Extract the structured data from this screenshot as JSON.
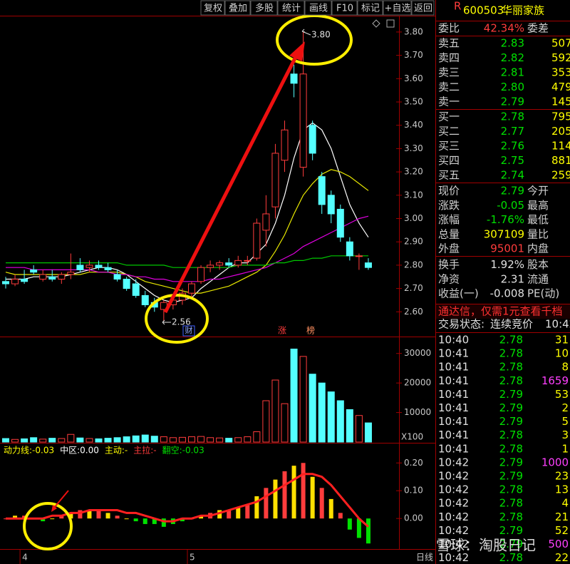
{
  "toolbar": [
    "复权",
    "叠加",
    "多股",
    "统计",
    "画线",
    "F10",
    "标记",
    "+自选",
    "返回"
  ],
  "chart_data": [
    {
      "type": "candlestick",
      "period": "日线",
      "categories": [
        null,
        null,
        "4",
        null,
        null,
        null,
        null,
        null,
        null,
        null,
        null,
        null,
        null,
        null,
        null,
        null,
        null,
        null,
        null,
        null,
        "5",
        null,
        null,
        null,
        null,
        null,
        null,
        null,
        null,
        null,
        null,
        null,
        null,
        null,
        null,
        null,
        null,
        null,
        null,
        null
      ],
      "open": [
        2.73,
        2.72,
        2.74,
        2.78,
        2.74,
        2.75,
        2.74,
        2.76,
        2.8,
        2.79,
        2.8,
        2.79,
        2.76,
        2.74,
        2.72,
        2.67,
        2.64,
        2.61,
        2.63,
        2.65,
        2.68,
        2.73,
        2.79,
        2.8,
        2.81,
        2.8,
        2.82,
        2.83,
        2.95,
        3.05,
        3.25,
        3.62,
        3.22,
        3.4,
        3.18,
        3.1,
        3.04,
        2.9,
        2.84,
        2.81
      ],
      "high": [
        2.75,
        2.76,
        2.78,
        2.8,
        2.78,
        2.78,
        2.77,
        2.85,
        2.83,
        2.82,
        2.82,
        2.81,
        2.78,
        2.75,
        2.74,
        2.69,
        2.66,
        2.65,
        2.66,
        2.7,
        2.73,
        2.8,
        2.82,
        2.82,
        2.83,
        2.84,
        2.84,
        3.0,
        3.1,
        3.32,
        3.42,
        3.66,
        3.8,
        3.42,
        3.2,
        3.12,
        3.06,
        2.92,
        2.85,
        2.83
      ],
      "low": [
        2.7,
        2.71,
        2.72,
        2.76,
        2.73,
        2.73,
        2.72,
        2.74,
        2.77,
        2.77,
        2.78,
        2.77,
        2.73,
        2.69,
        2.66,
        2.62,
        2.6,
        2.56,
        2.61,
        2.63,
        2.66,
        2.72,
        2.77,
        2.78,
        2.79,
        2.79,
        2.8,
        2.82,
        2.88,
        3.0,
        3.2,
        3.52,
        3.18,
        3.25,
        3.02,
        2.98,
        2.9,
        2.82,
        2.78,
        2.78
      ],
      "close": [
        2.72,
        2.74,
        2.73,
        2.77,
        2.76,
        2.74,
        2.76,
        2.77,
        2.78,
        2.8,
        2.79,
        2.78,
        2.74,
        2.7,
        2.67,
        2.63,
        2.62,
        2.64,
        2.65,
        2.68,
        2.72,
        2.79,
        2.8,
        2.81,
        2.8,
        2.82,
        2.82,
        2.98,
        3.02,
        3.28,
        3.38,
        3.58,
        3.62,
        3.28,
        3.06,
        3.02,
        2.92,
        2.84,
        2.84,
        2.79
      ],
      "up_color": "#ff3c3c",
      "down_color": "#54ffff",
      "ma": [
        {
          "color": "#ffffff",
          "values": [
            2.74,
            2.74,
            2.74,
            2.75,
            2.75,
            2.75,
            2.75,
            2.76,
            2.77,
            2.78,
            2.79,
            2.79,
            2.78,
            2.76,
            2.73,
            2.7,
            2.67,
            2.65,
            2.64,
            2.65,
            2.66,
            2.7,
            2.73,
            2.76,
            2.79,
            2.81,
            2.81,
            2.85,
            2.89,
            2.98,
            3.1,
            3.26,
            3.38,
            3.41,
            3.38,
            3.3,
            3.18,
            3.06,
            2.98,
            2.92
          ]
        },
        {
          "color": "#e8e800",
          "values": [
            2.77,
            2.76,
            2.76,
            2.76,
            2.76,
            2.76,
            2.76,
            2.76,
            2.76,
            2.77,
            2.77,
            2.77,
            2.77,
            2.76,
            2.75,
            2.73,
            2.72,
            2.71,
            2.7,
            2.69,
            2.68,
            2.68,
            2.69,
            2.7,
            2.71,
            2.73,
            2.75,
            2.77,
            2.8,
            2.86,
            2.93,
            3.02,
            3.1,
            3.15,
            3.19,
            3.21,
            3.2,
            3.18,
            3.15,
            3.12
          ]
        },
        {
          "color": "#e000e0",
          "values": [
            2.79,
            2.79,
            2.79,
            2.78,
            2.78,
            2.78,
            2.78,
            2.78,
            2.78,
            2.78,
            2.77,
            2.77,
            2.76,
            2.76,
            2.75,
            2.75,
            2.74,
            2.74,
            2.73,
            2.73,
            2.73,
            2.73,
            2.74,
            2.74,
            2.75,
            2.76,
            2.77,
            2.78,
            2.79,
            2.81,
            2.83,
            2.85,
            2.88,
            2.9,
            2.92,
            2.94,
            2.96,
            2.98,
            3.0,
            3.01
          ]
        },
        {
          "color": "#00c800",
          "values": [
            2.81,
            2.81,
            2.81,
            2.81,
            2.81,
            2.81,
            2.81,
            2.81,
            2.81,
            2.81,
            2.81,
            2.81,
            2.81,
            2.8,
            2.8,
            2.8,
            2.8,
            2.8,
            2.79,
            2.79,
            2.79,
            2.79,
            2.79,
            2.79,
            2.79,
            2.8,
            2.8,
            2.8,
            2.8,
            2.81,
            2.81,
            2.82,
            2.82,
            2.83,
            2.83,
            2.84,
            2.84,
            2.84,
            2.84,
            2.84
          ]
        }
      ],
      "ylim": [
        2.5,
        3.87
      ],
      "yticks": [
        {
          "value": 3.8,
          "label": "3.80"
        },
        {
          "value": 3.7,
          "label": "3.70"
        },
        {
          "value": 3.6,
          "label": "3.60"
        },
        {
          "value": 3.5,
          "label": "3.50"
        },
        {
          "value": 3.4,
          "label": "3.40"
        },
        {
          "value": 3.3,
          "label": "3.30"
        },
        {
          "value": 3.2,
          "label": "3.20"
        },
        {
          "value": 3.1,
          "label": "3.10"
        },
        {
          "value": 3.0,
          "label": "3.00"
        },
        {
          "value": 2.9,
          "label": "2.90"
        },
        {
          "value": 2.8,
          "label": "2.80"
        },
        {
          "value": 2.7,
          "label": "2.70"
        },
        {
          "value": 2.6,
          "label": "2.60"
        }
      ],
      "annotations": [
        "3.80",
        "2.56",
        "财",
        "涨",
        "榜"
      ]
    },
    {
      "type": "volume",
      "unit_label": "X100",
      "values": [
        1200,
        900,
        1100,
        1500,
        1000,
        1300,
        1200,
        2600,
        1400,
        1200,
        1100,
        1300,
        1500,
        1800,
        2100,
        2400,
        2000,
        1800,
        1500,
        1600,
        1800,
        1900,
        1500,
        1400,
        1300,
        1500,
        1800,
        3500,
        14000,
        21000,
        13000,
        31500,
        29000,
        23000,
        20000,
        17000,
        14000,
        11000,
        9000,
        6500
      ],
      "ylim": [
        0,
        35000
      ],
      "yticks": [
        30000,
        20000,
        10000
      ]
    },
    {
      "type": "indicator",
      "header": [
        {
          "text": "动力线:-0.03",
          "color": "#ffff00"
        },
        {
          "text": "中区:0.00",
          "color": "#ffffff"
        },
        {
          "text": "主动:-",
          "color": "#ffff00"
        },
        {
          "text": "主拉:-",
          "color": "#ff3c3c"
        },
        {
          "text": "翻空:-0.03",
          "color": "#00e000"
        }
      ],
      "values": [
        0.0,
        0.01,
        0.01,
        0.0,
        -0.01,
        0.0,
        0.01,
        0.02,
        0.03,
        0.03,
        0.03,
        0.02,
        0.01,
        0.0,
        -0.01,
        -0.02,
        -0.02,
        -0.03,
        -0.02,
        -0.01,
        0.0,
        0.01,
        0.02,
        0.03,
        0.03,
        0.04,
        0.05,
        0.08,
        0.11,
        0.14,
        0.17,
        0.19,
        0.2,
        0.15,
        0.11,
        0.07,
        0.02,
        -0.04,
        -0.07,
        -0.09
      ],
      "line": [
        0.0,
        0.0,
        0.0,
        0.0,
        0.0,
        0.01,
        0.01,
        0.02,
        0.02,
        0.03,
        0.03,
        0.03,
        0.03,
        0.02,
        0.02,
        0.01,
        0.0,
        -0.01,
        -0.01,
        0.0,
        0.0,
        0.01,
        0.01,
        0.02,
        0.03,
        0.04,
        0.05,
        0.06,
        0.08,
        0.1,
        0.12,
        0.14,
        0.16,
        0.16,
        0.15,
        0.12,
        0.08,
        0.04,
        0.0,
        -0.03
      ],
      "line_color": "#ff2020",
      "pos_color": "#ff3c3c",
      "neg_color": "#00e000",
      "ylim": [
        -0.11,
        0.27
      ],
      "yticks": [
        {
          "value": 0.2,
          "label": "0.20"
        },
        {
          "value": 0.1,
          "label": "0.10"
        },
        {
          "value": 0,
          "label": "0.00"
        }
      ]
    }
  ],
  "quote_panel": {
    "flag": "R",
    "code": "600503",
    "name": "华丽家族",
    "ratio": {
      "label": "委比",
      "value": "42.34%",
      "label2": "委差"
    },
    "asks": [
      {
        "label": "卖五",
        "price": "2.83",
        "volume": "507"
      },
      {
        "label": "卖四",
        "price": "2.82",
        "volume": "592"
      },
      {
        "label": "卖三",
        "price": "2.81",
        "volume": "353"
      },
      {
        "label": "卖二",
        "price": "2.80",
        "volume": "479"
      },
      {
        "label": "卖一",
        "price": "2.79",
        "volume": "145"
      }
    ],
    "bids": [
      {
        "label": "买一",
        "price": "2.78",
        "volume": "795"
      },
      {
        "label": "买二",
        "price": "2.77",
        "volume": "2051"
      },
      {
        "label": "买三",
        "price": "2.76",
        "volume": "1142"
      },
      {
        "label": "买四",
        "price": "2.75",
        "volume": "881"
      },
      {
        "label": "买五",
        "price": "2.74",
        "volume": "259"
      }
    ],
    "stats": [
      {
        "label": "现价",
        "value": "2.79",
        "label2": "今开",
        "color": "#00e000"
      },
      {
        "label": "涨跌",
        "value": "-0.05",
        "label2": "最高",
        "color": "#00e000"
      },
      {
        "label": "涨幅",
        "value": "-1.76%",
        "label2": "最低",
        "color": "#00e000"
      },
      {
        "label": "总量",
        "value": "307109",
        "label2": "量比",
        "color": "#ffff00"
      },
      {
        "label": "外盘",
        "value": "95001",
        "label2": "内盘",
        "color": "#ff3c3c"
      },
      {
        "label": "换手",
        "value": "1.92%",
        "label2": "股本",
        "color": "#e0e0e0"
      },
      {
        "label": "净资",
        "value": "2.31",
        "label2": "流通",
        "color": "#e0e0e0"
      },
      {
        "label": "收益(一)",
        "value": "-0.008",
        "label2": "PE(动)",
        "color": "#e0e0e0"
      }
    ],
    "ad": "通达信，仅需1元查看千档",
    "status": {
      "label": "交易状态:",
      "value": "连续竞价",
      "time": "10:42"
    },
    "ticks": [
      {
        "time": "10:40",
        "price": "2.78",
        "volume": "31"
      },
      {
        "time": "10:41",
        "price": "2.78",
        "volume": "10"
      },
      {
        "time": "10:41",
        "price": "2.78",
        "volume": "8"
      },
      {
        "time": "10:41",
        "price": "2.78",
        "volume": "1659"
      },
      {
        "time": "10:41",
        "price": "2.79",
        "volume": "53"
      },
      {
        "time": "10:41",
        "price": "2.79",
        "volume": "2"
      },
      {
        "time": "10:41",
        "price": "2.79",
        "volume": "5"
      },
      {
        "time": "10:41",
        "price": "2.78",
        "volume": "3"
      },
      {
        "time": "10:41",
        "price": "2.78",
        "volume": "1"
      },
      {
        "time": "10:42",
        "price": "2.79",
        "volume": "1000"
      },
      {
        "time": "10:42",
        "price": "2.79",
        "volume": "23"
      },
      {
        "time": "10:42",
        "price": "2.78",
        "volume": "13"
      },
      {
        "time": "10:42",
        "price": "2.78",
        "volume": "4"
      },
      {
        "time": "10:42",
        "price": "2.78",
        "volume": "21"
      },
      {
        "time": "10:42",
        "price": "2.79",
        "volume": "52"
      },
      {
        "time": "10:42",
        "price": "2.79",
        "volume": "500"
      },
      {
        "time": "10:42",
        "price": "2.78",
        "volume": "22"
      }
    ]
  },
  "watermark": "雪球：淘股日记"
}
